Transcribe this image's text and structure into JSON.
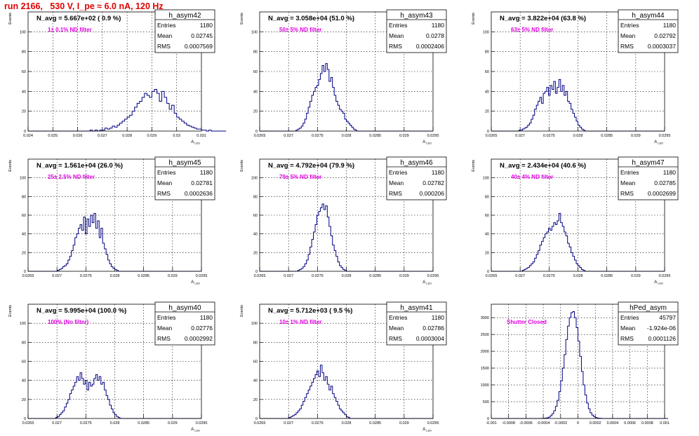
{
  "page_title": "run 2166,   530 V, I_pe ≈ 6.0 nA, 120 Hz",
  "stat_labels": {
    "entries": "Entries",
    "mean": "Mean",
    "rms": "RMS"
  },
  "colors": {
    "title": "#e00000",
    "annotation": "#e000e0",
    "histogram": "#000080",
    "axis": "#000000",
    "grid": "#000000"
  },
  "chart_data": [
    {
      "type": "bar",
      "name": "h_asym42",
      "navg": "N_avg = 5.667e+02 ( 0.9 %)",
      "annotation": "1± 0.1% ND filter",
      "stats": {
        "entries": "1180",
        "mean": "0.02745",
        "rms": "0.0007569"
      },
      "ylabel": "Events",
      "xlabel": "A",
      "xlabel_sub": "LED",
      "xlim": [
        0.024,
        0.031
      ],
      "ylim": [
        0,
        120
      ],
      "x_ticks": [
        "0.024",
        "0.025",
        "0.026",
        "0.027",
        "0.028",
        "0.029",
        "0.03",
        "0.031"
      ],
      "y_ticks": [
        "0",
        "20",
        "40",
        "60",
        "80",
        "100"
      ],
      "bins": {
        "start": 0.024,
        "width": 0.0001,
        "counts": [
          0,
          0,
          0,
          0,
          0,
          0,
          0,
          0,
          0,
          0,
          0,
          0,
          0,
          0,
          0,
          0,
          0,
          0,
          0,
          0,
          0,
          0,
          0,
          0,
          0,
          1,
          0,
          1,
          0,
          1,
          1,
          3,
          2,
          3,
          5,
          4,
          6,
          8,
          10,
          12,
          14,
          16,
          20,
          24,
          28,
          30,
          34,
          38,
          36,
          34,
          40,
          42,
          38,
          30,
          40,
          34,
          28,
          22,
          26,
          18,
          14,
          12,
          10,
          8,
          6,
          5,
          4,
          3,
          2,
          2,
          1,
          1,
          0,
          1,
          0,
          0,
          0,
          0,
          0,
          0
        ]
      }
    },
    {
      "type": "bar",
      "name": "h_asym43",
      "navg": "N_avg = 3.058e+04 (51.0 %)",
      "annotation": "50± 5% ND filter",
      "stats": {
        "entries": "1180",
        "mean": "0.0278",
        "rms": "0.0002406"
      },
      "ylabel": "Events",
      "xlabel": "A",
      "xlabel_sub": "LED",
      "xlim": [
        0.0265,
        0.0295
      ],
      "ylim": [
        0,
        120
      ],
      "x_ticks": [
        "0.0265",
        "0.027",
        "0.0275",
        "0.028",
        "0.0285",
        "0.029",
        "0.0295"
      ],
      "y_ticks": [
        "0",
        "20",
        "40",
        "60",
        "80",
        "100"
      ],
      "bins": {
        "start": 0.0265,
        "width": 3e-05,
        "counts": [
          0,
          0,
          0,
          0,
          0,
          0,
          0,
          0,
          0,
          0,
          0,
          0,
          0,
          0,
          0,
          0,
          0,
          0,
          0,
          0,
          0,
          1,
          2,
          3,
          5,
          8,
          12,
          18,
          24,
          30,
          36,
          40,
          44,
          46,
          52,
          58,
          66,
          60,
          68,
          62,
          50,
          54,
          44,
          36,
          30,
          26,
          22,
          20,
          18,
          12,
          10,
          8,
          6,
          4,
          2,
          1,
          0,
          0,
          0,
          0,
          0,
          0,
          0,
          0,
          0,
          0,
          0,
          0,
          0,
          0,
          0,
          0,
          0,
          0,
          0,
          0,
          0,
          0,
          0,
          0,
          0,
          0,
          0,
          0,
          0,
          0,
          0,
          0,
          0,
          0,
          0,
          0,
          0,
          0,
          0,
          0,
          0,
          0,
          0,
          0
        ]
      }
    },
    {
      "type": "bar",
      "name": "h_asym44",
      "navg": "N_avg = 3.822e+04 (63.8 %)",
      "annotation": "63± 5% ND filter",
      "stats": {
        "entries": "1180",
        "mean": "0.02792",
        "rms": "0.0003037"
      },
      "ylabel": "Events",
      "xlabel": "A",
      "xlabel_sub": "LED",
      "xlim": [
        0.0265,
        0.0295
      ],
      "ylim": [
        0,
        120
      ],
      "x_ticks": [
        "0.0265",
        "0.027",
        "0.0275",
        "0.028",
        "0.0285",
        "0.029",
        "0.0295"
      ],
      "y_ticks": [
        "0",
        "20",
        "40",
        "60",
        "80",
        "100"
      ],
      "bins": {
        "start": 0.0265,
        "width": 3e-05,
        "counts": [
          0,
          0,
          0,
          0,
          0,
          0,
          0,
          0,
          0,
          0,
          0,
          0,
          0,
          0,
          0,
          0,
          1,
          1,
          2,
          3,
          4,
          6,
          8,
          12,
          16,
          22,
          26,
          30,
          34,
          28,
          38,
          40,
          44,
          36,
          46,
          42,
          50,
          38,
          44,
          52,
          40,
          46,
          36,
          40,
          30,
          28,
          22,
          18,
          14,
          10,
          6,
          4,
          2,
          1,
          0,
          0,
          0,
          0,
          0,
          0,
          0,
          0,
          0,
          0,
          0,
          0,
          0,
          0,
          0,
          0,
          0,
          0,
          0,
          0,
          0,
          0,
          0,
          0,
          0,
          0,
          0,
          0,
          0,
          0,
          0,
          0,
          0,
          0,
          0,
          0,
          0,
          0,
          0,
          0,
          0,
          0,
          0,
          0,
          0,
          0
        ]
      }
    },
    {
      "type": "bar",
      "name": "h_asym45",
      "navg": "N_avg = 1.561e+04 (26.0 %)",
      "annotation": "25± 2.5% ND filter",
      "stats": {
        "entries": "1180",
        "mean": "0.02781",
        "rms": "0.0002636"
      },
      "ylabel": "Events",
      "xlabel": "A",
      "xlabel_sub": "LED",
      "xlim": [
        0.0265,
        0.0295
      ],
      "ylim": [
        0,
        120
      ],
      "x_ticks": [
        "0.0265",
        "0.027",
        "0.0275",
        "0.028",
        "0.0285",
        "0.029",
        "0.0295"
      ],
      "y_ticks": [
        "0",
        "20",
        "40",
        "60",
        "80",
        "100"
      ],
      "bins": {
        "start": 0.0265,
        "width": 3e-05,
        "counts": [
          0,
          0,
          0,
          0,
          0,
          0,
          0,
          0,
          0,
          0,
          0,
          0,
          0,
          0,
          0,
          0,
          0,
          1,
          2,
          3,
          5,
          6,
          8,
          12,
          16,
          22,
          28,
          36,
          40,
          46,
          50,
          44,
          58,
          40,
          56,
          48,
          60,
          52,
          62,
          46,
          54,
          36,
          46,
          30,
          24,
          18,
          12,
          8,
          5,
          3,
          2,
          1,
          0,
          0,
          0,
          0,
          0,
          0,
          0,
          0,
          0,
          0,
          0,
          0,
          0,
          0,
          0,
          0,
          0,
          0,
          0,
          0,
          0,
          0,
          0,
          0,
          0,
          0,
          0,
          0,
          0,
          0,
          0,
          0,
          0,
          0,
          0,
          0,
          0,
          0,
          0,
          0,
          0,
          0,
          0,
          0,
          0,
          0,
          0,
          0
        ]
      }
    },
    {
      "type": "bar",
      "name": "h_asym46",
      "navg": "N_avg = 4.792e+04 (79.9 %)",
      "annotation": "79± 5% ND filter",
      "stats": {
        "entries": "1180",
        "mean": "0.02782",
        "rms": "0.000206"
      },
      "ylabel": "Events",
      "xlabel": "A",
      "xlabel_sub": "LED",
      "xlim": [
        0.0265,
        0.0295
      ],
      "ylim": [
        0,
        120
      ],
      "x_ticks": [
        "0.0265",
        "0.027",
        "0.0275",
        "0.028",
        "0.0285",
        "0.029",
        "0.0295"
      ],
      "y_ticks": [
        "0",
        "20",
        "40",
        "60",
        "80",
        "100"
      ],
      "bins": {
        "start": 0.0265,
        "width": 3e-05,
        "counts": [
          0,
          0,
          0,
          0,
          0,
          0,
          0,
          0,
          0,
          0,
          0,
          0,
          0,
          0,
          0,
          0,
          0,
          0,
          0,
          0,
          0,
          0,
          1,
          2,
          3,
          5,
          8,
          12,
          18,
          26,
          34,
          42,
          50,
          60,
          64,
          68,
          72,
          66,
          70,
          58,
          48,
          38,
          28,
          22,
          16,
          10,
          6,
          4,
          2,
          1,
          0,
          0,
          0,
          0,
          0,
          0,
          0,
          0,
          0,
          0,
          0,
          0,
          0,
          0,
          0,
          0,
          0,
          0,
          0,
          0,
          0,
          0,
          0,
          0,
          0,
          0,
          0,
          0,
          0,
          0,
          0,
          0,
          0,
          0,
          0,
          0,
          0,
          0,
          0,
          0,
          0,
          0,
          0,
          0,
          0,
          0,
          0,
          0,
          0,
          0
        ]
      }
    },
    {
      "type": "bar",
      "name": "h_asym47",
      "navg": "N_avg = 2.434e+04 (40.6 %)",
      "annotation": "40± 4% ND filter",
      "stats": {
        "entries": "1180",
        "mean": "0.02785",
        "rms": "0.0002699"
      },
      "ylabel": "Events",
      "xlabel": "A",
      "xlabel_sub": "LED",
      "xlim": [
        0.0265,
        0.0295
      ],
      "ylim": [
        0,
        120
      ],
      "x_ticks": [
        "0.0265",
        "0.027",
        "0.0275",
        "0.028",
        "0.0285",
        "0.029",
        "0.0295"
      ],
      "y_ticks": [
        "0",
        "20",
        "40",
        "60",
        "80",
        "100"
      ],
      "bins": {
        "start": 0.0265,
        "width": 3e-05,
        "counts": [
          0,
          0,
          0,
          0,
          0,
          0,
          0,
          0,
          0,
          0,
          0,
          0,
          0,
          0,
          0,
          0,
          0,
          0,
          1,
          2,
          3,
          4,
          6,
          8,
          10,
          14,
          18,
          22,
          28,
          32,
          36,
          40,
          42,
          46,
          44,
          48,
          52,
          50,
          54,
          62,
          52,
          48,
          42,
          38,
          30,
          26,
          20,
          16,
          12,
          8,
          6,
          4,
          2,
          1,
          0,
          0,
          0,
          0,
          0,
          0,
          0,
          0,
          0,
          0,
          0,
          0,
          0,
          0,
          0,
          0,
          0,
          0,
          0,
          0,
          0,
          0,
          0,
          0,
          0,
          0,
          0,
          0,
          0,
          0,
          0,
          0,
          0,
          0,
          0,
          0,
          0,
          0,
          0,
          0,
          0,
          0,
          0,
          0,
          0,
          0
        ]
      }
    },
    {
      "type": "bar",
      "name": "h_asym40",
      "navg": "N_avg = 5.995e+04 (100.0 %)",
      "annotation": "100% (No filter)",
      "stats": {
        "entries": "1180",
        "mean": "0.02776",
        "rms": "0.0002992"
      },
      "ylabel": "Events",
      "xlabel": "A",
      "xlabel_sub": "LED",
      "xlim": [
        0.0265,
        0.0295
      ],
      "ylim": [
        0,
        120
      ],
      "x_ticks": [
        "0.0265",
        "0.027",
        "0.0275",
        "0.028",
        "0.0285",
        "0.029",
        "0.0295"
      ],
      "y_ticks": [
        "0",
        "20",
        "40",
        "60",
        "80",
        "100"
      ],
      "bins": {
        "start": 0.0265,
        "width": 3e-05,
        "counts": [
          0,
          0,
          0,
          0,
          0,
          0,
          0,
          0,
          0,
          0,
          0,
          0,
          0,
          0,
          0,
          0,
          1,
          2,
          4,
          6,
          8,
          12,
          16,
          20,
          26,
          30,
          34,
          38,
          44,
          40,
          48,
          42,
          36,
          40,
          30,
          38,
          34,
          36,
          42,
          46,
          40,
          44,
          36,
          38,
          30,
          24,
          20,
          14,
          10,
          6,
          4,
          2,
          1,
          0,
          0,
          0,
          0,
          0,
          0,
          0,
          0,
          0,
          0,
          0,
          0,
          0,
          0,
          0,
          0,
          0,
          0,
          0,
          0,
          0,
          0,
          0,
          0,
          0,
          0,
          0,
          0,
          0,
          0,
          0,
          0,
          0,
          0,
          0,
          0,
          0,
          0,
          0,
          0,
          0,
          0,
          0,
          0,
          0,
          0,
          0
        ]
      }
    },
    {
      "type": "bar",
      "name": "h_asym41",
      "navg": "N_avg = 5.712e+03 ( 9.5 %)",
      "annotation": "10± 1% ND filter",
      "stats": {
        "entries": "1180",
        "mean": "0.02786",
        "rms": "0.0003004"
      },
      "ylabel": "Events",
      "xlabel": "A",
      "xlabel_sub": "LED",
      "xlim": [
        0.0265,
        0.0295
      ],
      "ylim": [
        0,
        120
      ],
      "x_ticks": [
        "0.0265",
        "0.027",
        "0.0275",
        "0.028",
        "0.0285",
        "0.029",
        "0.0295"
      ],
      "y_ticks": [
        "0",
        "20",
        "40",
        "60",
        "80",
        "100"
      ],
      "bins": {
        "start": 0.0265,
        "width": 3e-05,
        "counts": [
          0,
          0,
          0,
          0,
          0,
          0,
          0,
          0,
          0,
          0,
          0,
          0,
          0,
          0,
          0,
          0,
          0,
          1,
          2,
          3,
          4,
          6,
          8,
          10,
          14,
          18,
          22,
          26,
          30,
          34,
          38,
          42,
          46,
          50,
          44,
          56,
          48,
          40,
          44,
          36,
          30,
          34,
          26,
          22,
          18,
          14,
          10,
          8,
          6,
          4,
          2,
          1,
          0,
          0,
          0,
          0,
          0,
          0,
          0,
          0,
          0,
          0,
          0,
          0,
          0,
          0,
          0,
          0,
          0,
          0,
          0,
          0,
          0,
          0,
          0,
          0,
          0,
          0,
          0,
          0,
          0,
          0,
          0,
          0,
          0,
          0,
          0,
          0,
          0,
          0,
          0,
          0,
          0,
          0,
          0,
          0,
          0,
          0,
          0,
          0
        ]
      }
    },
    {
      "type": "bar",
      "name": "hPed_asym",
      "navg": "",
      "annotation": "Shutter Closed",
      "stats": {
        "entries": "45797",
        "mean": "-1.924e-06",
        "rms": "0.0001126"
      },
      "ylabel": "",
      "xlabel": "",
      "xlabel_sub": "",
      "xlim": [
        -0.001,
        0.001
      ],
      "ylim": [
        0,
        3400
      ],
      "x_ticks": [
        "-0.001",
        "-0.0008",
        "-0.0006",
        "-0.0004",
        "-0.0002",
        "0",
        "0.0002",
        "0.0004",
        "0.0006",
        "0.0008",
        "0.001"
      ],
      "y_ticks": [
        "0",
        "500",
        "1000",
        "1500",
        "2000",
        "2500",
        "3000"
      ],
      "bins": {
        "start": -0.001,
        "width": 2e-05,
        "counts": [
          0,
          0,
          0,
          0,
          0,
          0,
          0,
          0,
          0,
          0,
          0,
          0,
          0,
          0,
          0,
          0,
          0,
          0,
          0,
          0,
          0,
          0,
          0,
          0,
          0,
          0,
          0,
          0,
          0,
          2,
          5,
          10,
          20,
          40,
          80,
          140,
          230,
          360,
          540,
          800,
          1120,
          1500,
          1900,
          2350,
          2750,
          3000,
          3150,
          3180,
          3000,
          2700,
          2300,
          1850,
          1400,
          1000,
          700,
          460,
          290,
          170,
          100,
          55,
          28,
          14,
          7,
          3,
          1,
          0,
          0,
          0,
          0,
          0,
          0,
          0,
          0,
          0,
          0,
          0,
          0,
          0,
          0,
          0,
          0,
          0,
          0,
          0,
          0,
          0,
          0,
          0,
          0,
          0,
          0,
          0,
          0,
          0,
          0,
          0,
          0,
          0,
          0,
          0,
          0,
          0
        ]
      }
    }
  ]
}
